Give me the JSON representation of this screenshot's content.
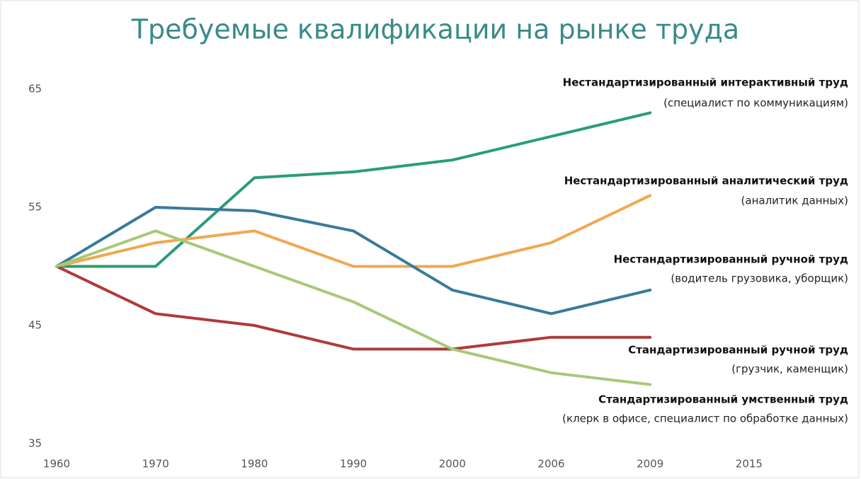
{
  "chart_data": {
    "type": "line",
    "title": "Требуемые квалификации на рынке труда",
    "categories": [
      "1960",
      "1970",
      "1980",
      "1990",
      "2000",
      "2006",
      "2009",
      "2015"
    ],
    "ylim": [
      35,
      65
    ],
    "yticks": [
      35,
      45,
      55,
      65
    ],
    "grid": false,
    "series": [
      {
        "name": "Нестандартизированный интерактивный труд",
        "description": "(специалист по коммуникациям)",
        "color": "#2a9d74",
        "values": [
          50,
          50,
          57.5,
          58,
          59,
          61,
          63,
          null
        ]
      },
      {
        "name": "Нестандартизированный аналитический труд",
        "description": "(аналитик данных)",
        "color": "#f0a850",
        "values": [
          50,
          52,
          53,
          50,
          50,
          52,
          56,
          null
        ]
      },
      {
        "name": "Нестандартизированный ручной труд",
        "description": "(водитель грузовика, уборщик)",
        "color": "#3a7a9a",
        "values": [
          50,
          55,
          54.7,
          53,
          48,
          46,
          48,
          null
        ]
      },
      {
        "name": "Стандартизированный ручной труд",
        "description": "(грузчик, каменщик)",
        "color": "#b03a3a",
        "values": [
          50,
          46,
          45,
          43,
          43,
          44,
          44,
          null
        ]
      },
      {
        "name": "Стандартизированный умственный труд",
        "description": "(клерк в офисе, специалист по обработке данных)",
        "color": "#a8c878",
        "values": [
          50,
          53,
          50,
          47,
          43,
          41,
          40,
          null
        ]
      }
    ]
  }
}
